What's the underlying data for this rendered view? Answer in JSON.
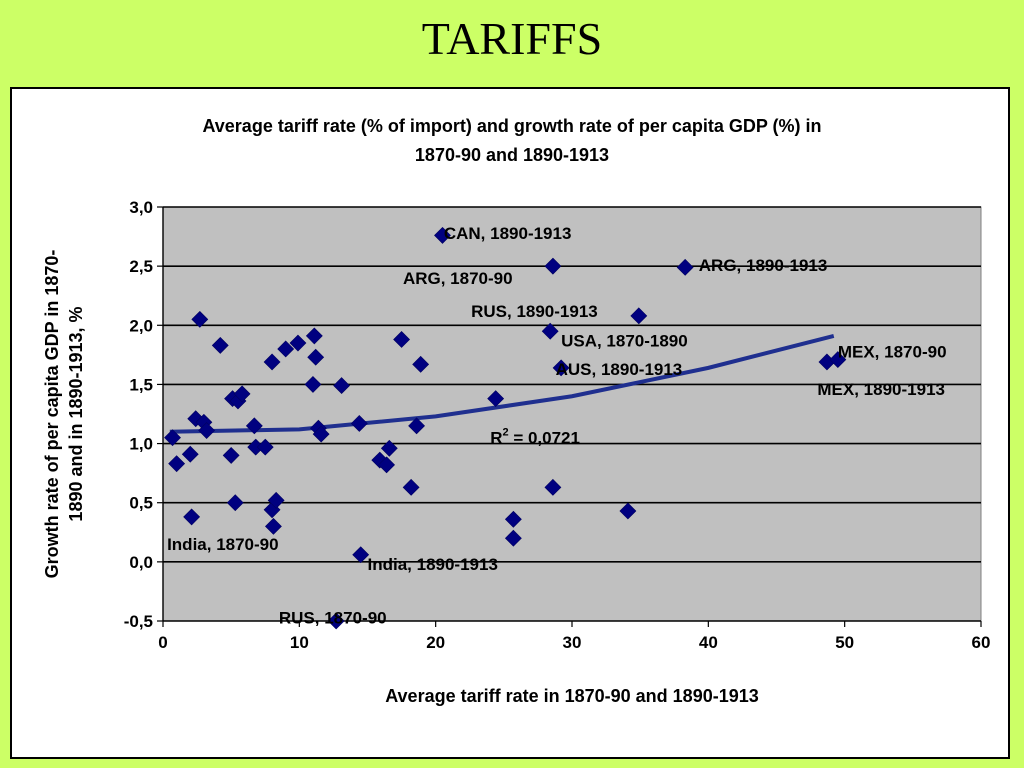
{
  "slide": {
    "title": "TARIFFS",
    "background": "#ccff66"
  },
  "chart_data": {
    "type": "scatter",
    "title_lines": [
      "Average tariff rate (% of import) and growth rate of per capita GDP (%)  in",
      "1870-90 and 1890-1913"
    ],
    "xlabel": "Average tariff rate in 1870-90 and 1890-1913",
    "ylabel_lines": [
      "Growth rate of per capita GDP in 1870-",
      "1890 and in 1890-1913, %"
    ],
    "xlim": [
      0,
      60
    ],
    "ylim": [
      -0.5,
      3.0
    ],
    "x_ticks": [
      0,
      10,
      20,
      30,
      40,
      50,
      60
    ],
    "x_tick_labels": [
      "0",
      "10",
      "20",
      "30",
      "40",
      "50",
      "60"
    ],
    "y_ticks": [
      -0.5,
      0.0,
      0.5,
      1.0,
      1.5,
      2.0,
      2.5,
      3.0
    ],
    "y_tick_labels": [
      "-0,5",
      "0,0",
      "0,5",
      "1,0",
      "1,5",
      "2,0",
      "2,5",
      "3,0"
    ],
    "gridlines": "horizontal",
    "plot_background": "#c0c0c0",
    "marker_color": "#000080",
    "trendline_color": "#1f2f8f",
    "points": [
      {
        "x": 0.7,
        "y": 1.05
      },
      {
        "x": 1.0,
        "y": 0.83
      },
      {
        "x": 2.0,
        "y": 0.91
      },
      {
        "x": 2.1,
        "y": 0.38
      },
      {
        "x": 2.4,
        "y": 1.21
      },
      {
        "x": 2.7,
        "y": 2.05
      },
      {
        "x": 3.0,
        "y": 1.18
      },
      {
        "x": 3.2,
        "y": 1.11
      },
      {
        "x": 4.2,
        "y": 1.83
      },
      {
        "x": 5.0,
        "y": 0.9
      },
      {
        "x": 5.1,
        "y": 1.38
      },
      {
        "x": 5.3,
        "y": 0.5
      },
      {
        "x": 5.5,
        "y": 1.36
      },
      {
        "x": 5.8,
        "y": 1.42
      },
      {
        "x": 6.7,
        "y": 1.15
      },
      {
        "x": 6.8,
        "y": 0.97
      },
      {
        "x": 7.5,
        "y": 0.97
      },
      {
        "x": 8.0,
        "y": 1.69
      },
      {
        "x": 8.0,
        "y": 0.44
      },
      {
        "x": 8.1,
        "y": 0.3
      },
      {
        "x": 8.3,
        "y": 0.52
      },
      {
        "x": 9.0,
        "y": 1.8
      },
      {
        "x": 9.9,
        "y": 1.85
      },
      {
        "x": 11.0,
        "y": 1.5
      },
      {
        "x": 11.1,
        "y": 1.91
      },
      {
        "x": 11.2,
        "y": 1.73
      },
      {
        "x": 11.4,
        "y": 1.13
      },
      {
        "x": 11.6,
        "y": 1.08
      },
      {
        "x": 13.1,
        "y": 1.49
      },
      {
        "x": 12.7,
        "y": -0.5
      },
      {
        "x": 14.4,
        "y": 1.17
      },
      {
        "x": 14.5,
        "y": 0.06
      },
      {
        "x": 15.9,
        "y": 0.86
      },
      {
        "x": 16.4,
        "y": 0.82
      },
      {
        "x": 16.6,
        "y": 0.96
      },
      {
        "x": 17.5,
        "y": 1.88
      },
      {
        "x": 18.2,
        "y": 0.63
      },
      {
        "x": 18.6,
        "y": 1.15
      },
      {
        "x": 18.9,
        "y": 1.67
      },
      {
        "x": 20.5,
        "y": 2.76
      },
      {
        "x": 24.4,
        "y": 1.38
      },
      {
        "x": 25.7,
        "y": 0.36
      },
      {
        "x": 25.7,
        "y": 0.2
      },
      {
        "x": 28.4,
        "y": 1.95
      },
      {
        "x": 28.6,
        "y": 2.5
      },
      {
        "x": 28.6,
        "y": 0.63
      },
      {
        "x": 29.2,
        "y": 1.64
      },
      {
        "x": 34.1,
        "y": 0.43
      },
      {
        "x": 34.9,
        "y": 2.08
      },
      {
        "x": 38.3,
        "y": 2.49
      },
      {
        "x": 48.7,
        "y": 1.69
      },
      {
        "x": 49.5,
        "y": 1.71
      }
    ],
    "trendline": {
      "r2_label": "R",
      "r2_sup": "2",
      "r2_value": " = 0,0721",
      "r2_pos": {
        "x": 24.0,
        "y": 1.05
      },
      "points": [
        {
          "x": 0.5,
          "y": 1.1
        },
        {
          "x": 10,
          "y": 1.12
        },
        {
          "x": 20,
          "y": 1.23
        },
        {
          "x": 30,
          "y": 1.4
        },
        {
          "x": 40,
          "y": 1.64
        },
        {
          "x": 49.2,
          "y": 1.91
        }
      ]
    },
    "annotations": [
      {
        "text": "CAN, 1890-1913",
        "x": 20.6,
        "y": 2.78,
        "anchor": "start"
      },
      {
        "text": "ARG, 1870-90",
        "x": 17.6,
        "y": 2.4,
        "anchor": "start"
      },
      {
        "text": "ARG, 1890-1913",
        "x": 39.3,
        "y": 2.51,
        "anchor": "start"
      },
      {
        "text": "RUS, 1890-1913",
        "x": 22.6,
        "y": 2.12,
        "anchor": "start"
      },
      {
        "text": "USA, 1870-1890",
        "x": 29.2,
        "y": 1.87,
        "anchor": "start"
      },
      {
        "text": "AUS, 1890-1913",
        "x": 28.8,
        "y": 1.63,
        "anchor": "start"
      },
      {
        "text": "MEX, 1870-90",
        "x": 49.5,
        "y": 1.78,
        "anchor": "start"
      },
      {
        "text": "MEX, 1890-1913",
        "x": 48.0,
        "y": 1.46,
        "anchor": "start"
      },
      {
        "text": "India, 1870-90",
        "x": 0.3,
        "y": 0.15,
        "anchor": "start"
      },
      {
        "text": "India, 1890-1913",
        "x": 15.0,
        "y": -0.02,
        "anchor": "start"
      },
      {
        "text": "RUS, 1870-90",
        "x": 8.5,
        "y": -0.47,
        "anchor": "start"
      }
    ]
  }
}
